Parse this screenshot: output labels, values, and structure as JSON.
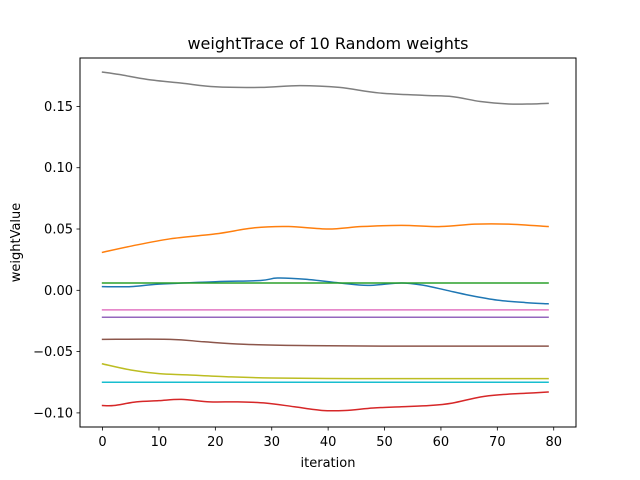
{
  "chart_data": {
    "type": "line",
    "title": "weightTrace of 10 Random weights",
    "xlabel": "iteration",
    "ylabel": "weightValue",
    "xlim": [
      -4,
      83.95
    ],
    "ylim": [
      -0.1115,
      0.1895
    ],
    "xticks": [
      0,
      10,
      20,
      30,
      40,
      50,
      60,
      70,
      80
    ],
    "xtick_labels": [
      "0",
      "10",
      "20",
      "30",
      "40",
      "50",
      "60",
      "70",
      "80"
    ],
    "yticks": [
      -0.1,
      -0.05,
      0.0,
      0.05,
      0.1,
      0.15
    ],
    "ytick_labels": [
      "−0.10",
      "−0.05",
      "0.00",
      "0.05",
      "0.10",
      "0.15"
    ],
    "grid": false,
    "legend": "none",
    "series": [
      {
        "color": "#1f77b4",
        "points": [
          [
            0,
            0.003
          ],
          [
            5,
            0.003
          ],
          [
            10,
            0.005
          ],
          [
            20,
            0.007
          ],
          [
            28,
            0.008
          ],
          [
            31,
            0.01
          ],
          [
            36,
            0.009
          ],
          [
            42,
            0.006
          ],
          [
            47,
            0.004
          ],
          [
            53,
            0.006
          ],
          [
            57,
            0.004
          ],
          [
            61,
            0.0
          ],
          [
            65,
            -0.004
          ],
          [
            70,
            -0.008
          ],
          [
            75,
            -0.01
          ],
          [
            79,
            -0.011
          ]
        ]
      },
      {
        "color": "#ff7f0e",
        "points": [
          [
            0,
            0.031
          ],
          [
            5,
            0.036
          ],
          [
            12,
            0.042
          ],
          [
            20,
            0.046
          ],
          [
            27,
            0.051
          ],
          [
            33,
            0.052
          ],
          [
            40,
            0.05
          ],
          [
            46,
            0.052
          ],
          [
            53,
            0.053
          ],
          [
            60,
            0.052
          ],
          [
            66,
            0.054
          ],
          [
            72,
            0.054
          ],
          [
            79,
            0.052
          ]
        ]
      },
      {
        "color": "#2ca02c",
        "points": [
          [
            0,
            0.006
          ],
          [
            79,
            0.006
          ]
        ]
      },
      {
        "color": "#d62728",
        "points": [
          [
            0,
            -0.094
          ],
          [
            2,
            -0.094
          ],
          [
            6,
            -0.091
          ],
          [
            10,
            -0.09
          ],
          [
            14,
            -0.089
          ],
          [
            19,
            -0.091
          ],
          [
            24,
            -0.091
          ],
          [
            29,
            -0.092
          ],
          [
            34,
            -0.095
          ],
          [
            39,
            -0.098
          ],
          [
            43,
            -0.098
          ],
          [
            48,
            -0.096
          ],
          [
            53,
            -0.095
          ],
          [
            58,
            -0.094
          ],
          [
            62,
            -0.092
          ],
          [
            67,
            -0.087
          ],
          [
            71,
            -0.085
          ],
          [
            75,
            -0.084
          ],
          [
            79,
            -0.083
          ]
        ]
      },
      {
        "color": "#9467bd",
        "points": [
          [
            0,
            -0.022
          ],
          [
            79,
            -0.022
          ]
        ]
      },
      {
        "color": "#8c564b",
        "points": [
          [
            0,
            -0.04
          ],
          [
            12,
            -0.04
          ],
          [
            18,
            -0.042
          ],
          [
            25,
            -0.044
          ],
          [
            35,
            -0.045
          ],
          [
            50,
            -0.0455
          ],
          [
            79,
            -0.0455
          ]
        ]
      },
      {
        "color": "#e377c2",
        "points": [
          [
            0,
            -0.016
          ],
          [
            79,
            -0.016
          ]
        ]
      },
      {
        "color": "#7f7f7f",
        "points": [
          [
            0,
            0.178
          ],
          [
            3,
            0.176
          ],
          [
            8,
            0.172
          ],
          [
            14,
            0.169
          ],
          [
            20,
            0.166
          ],
          [
            28,
            0.1655
          ],
          [
            35,
            0.167
          ],
          [
            42,
            0.1655
          ],
          [
            49,
            0.161
          ],
          [
            57,
            0.159
          ],
          [
            62,
            0.158
          ],
          [
            67,
            0.154
          ],
          [
            72,
            0.152
          ],
          [
            76,
            0.152
          ],
          [
            79,
            0.1525
          ]
        ]
      },
      {
        "color": "#bcbd22",
        "points": [
          [
            0,
            -0.06
          ],
          [
            5,
            -0.065
          ],
          [
            10,
            -0.068
          ],
          [
            15,
            -0.069
          ],
          [
            22,
            -0.0705
          ],
          [
            30,
            -0.0715
          ],
          [
            45,
            -0.072
          ],
          [
            60,
            -0.072
          ],
          [
            79,
            -0.072
          ]
        ]
      },
      {
        "color": "#17becf",
        "points": [
          [
            0,
            -0.075
          ],
          [
            79,
            -0.075
          ]
        ]
      }
    ]
  }
}
